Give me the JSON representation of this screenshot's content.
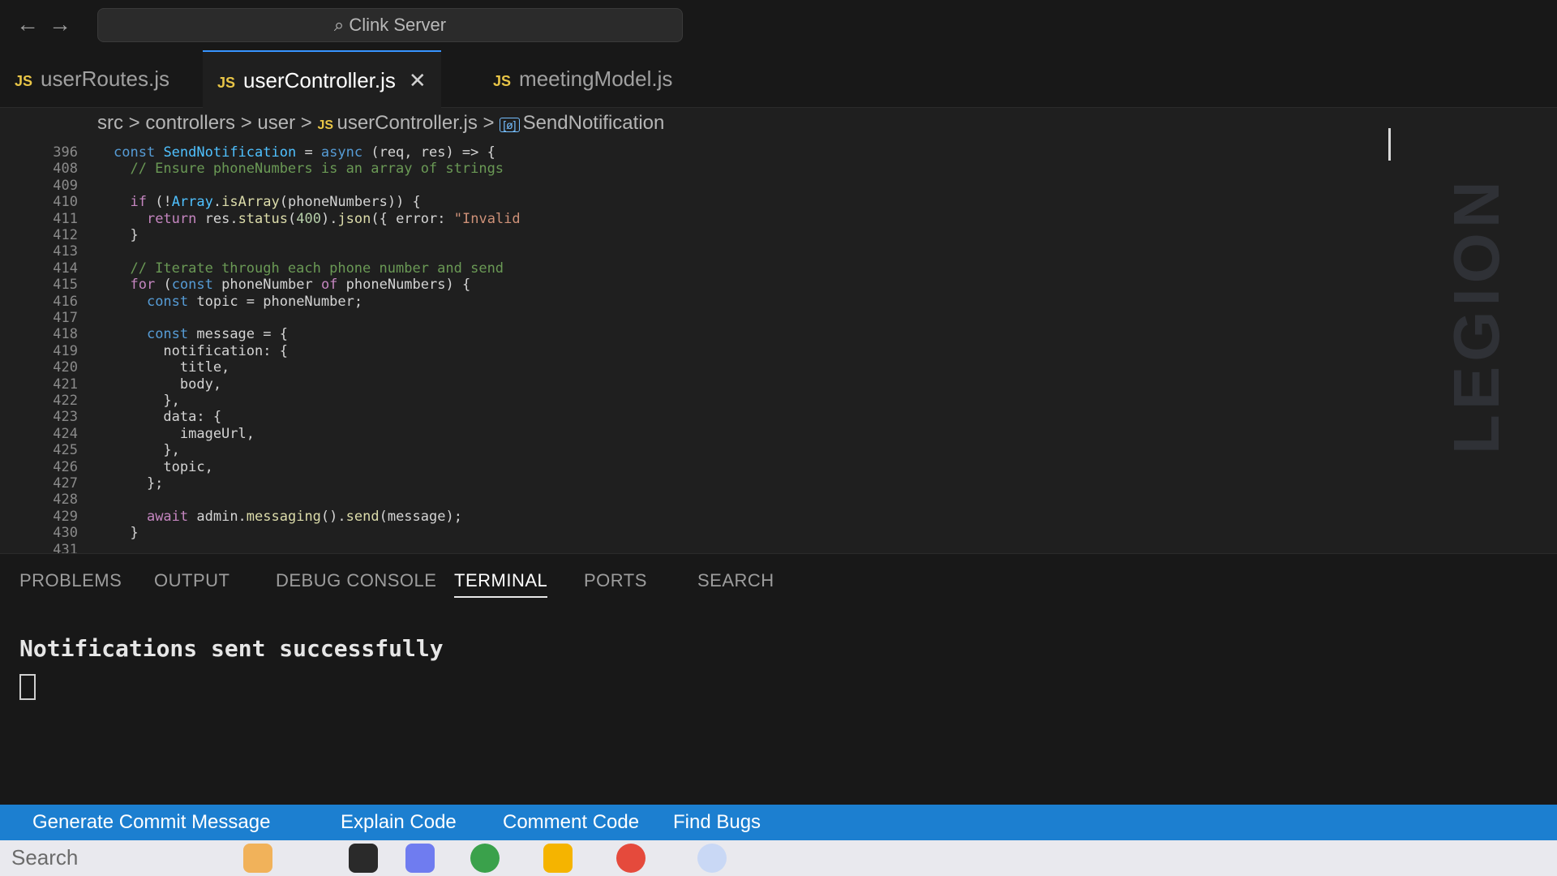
{
  "window": {
    "nav_back": "←",
    "nav_forward": "→",
    "search": "Clink Server"
  },
  "tabs": [
    {
      "label": "userRoutes.js",
      "active": false
    },
    {
      "label": "userController.js",
      "active": true
    },
    {
      "label": "meetingModel.js",
      "active": false
    }
  ],
  "breadcrumb": {
    "path": "src > controllers > user > ",
    "file": "userController.js",
    "symbol": "SendNotification"
  },
  "editor": {
    "lines": [
      {
        "n": "396",
        "text": "const SendNotification = async (req, res) => {"
      },
      {
        "n": "408",
        "text": "  // Ensure phoneNumbers is an array of strings"
      },
      {
        "n": "409",
        "text": ""
      },
      {
        "n": "410",
        "text": "  if (!Array.isArray(phoneNumbers)) {"
      },
      {
        "n": "411",
        "text": "    return res.status(400).json({ error: \"Invalid"
      },
      {
        "n": "412",
        "text": "  }"
      },
      {
        "n": "413",
        "text": ""
      },
      {
        "n": "414",
        "text": "  // Iterate through each phone number and send"
      },
      {
        "n": "415",
        "text": "  for (const phoneNumber of phoneNumbers) {"
      },
      {
        "n": "416",
        "text": "    const topic = phoneNumber;"
      },
      {
        "n": "417",
        "text": ""
      },
      {
        "n": "418",
        "text": "    const message = {"
      },
      {
        "n": "419",
        "text": "      notification: {"
      },
      {
        "n": "420",
        "text": "        title,"
      },
      {
        "n": "421",
        "text": "        body,"
      },
      {
        "n": "422",
        "text": "      },"
      },
      {
        "n": "423",
        "text": "      data: {"
      },
      {
        "n": "424",
        "text": "        imageUrl,"
      },
      {
        "n": "425",
        "text": "      },"
      },
      {
        "n": "426",
        "text": "      topic,"
      },
      {
        "n": "427",
        "text": "    };"
      },
      {
        "n": "428",
        "text": ""
      },
      {
        "n": "429",
        "text": "    await admin.messaging().send(message);"
      },
      {
        "n": "430",
        "text": "  }"
      },
      {
        "n": "431",
        "text": ""
      }
    ]
  },
  "panel": {
    "tabs": [
      "PROBLEMS",
      "OUTPUT",
      "DEBUG CONSOLE",
      "TERMINAL",
      "PORTS",
      "SEARCH"
    ],
    "active_tab": "TERMINAL",
    "terminal_output": "Notifications sent successfully"
  },
  "statusbar": {
    "items": [
      "Generate Commit Message",
      "Explain Code",
      "Comment Code",
      "Find Bugs"
    ]
  },
  "taskbar": {
    "search": "Search"
  },
  "bezel": {
    "brand": "LEGION"
  },
  "colors": {
    "statusbar": "#1c7fd0",
    "editor_bg": "#1f1f1f",
    "keyword": "#569cd6",
    "comment": "#6a9955"
  }
}
